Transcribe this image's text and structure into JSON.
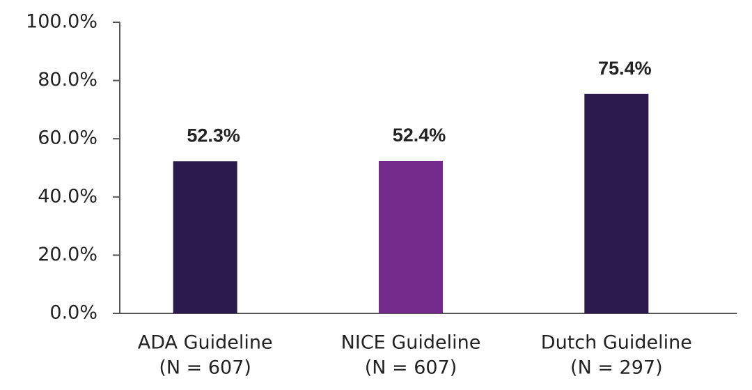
{
  "chart_data": {
    "type": "bar",
    "categories": [
      [
        "ADA Guideline",
        "(N = 607)"
      ],
      [
        "NICE Guideline",
        "(N = 607)"
      ],
      [
        "Dutch Guideline",
        "(N = 297)"
      ]
    ],
    "values": [
      52.3,
      52.4,
      75.4
    ],
    "value_labels": [
      "52.3%",
      "52.4%",
      "75.4%"
    ],
    "colors": [
      "#2b1a4c",
      "#722b8a",
      "#2b1a4c"
    ],
    "ylim": [
      0,
      100
    ],
    "yticks": [
      {
        "value": 0,
        "label": "0.0%"
      },
      {
        "value": 20,
        "label": "20.0%"
      },
      {
        "value": 40,
        "label": "40.0%"
      },
      {
        "value": 60,
        "label": "60.0%"
      },
      {
        "value": 80,
        "label": "80.0%"
      },
      {
        "value": 100,
        "label": "100.0%"
      }
    ],
    "grid": false
  }
}
